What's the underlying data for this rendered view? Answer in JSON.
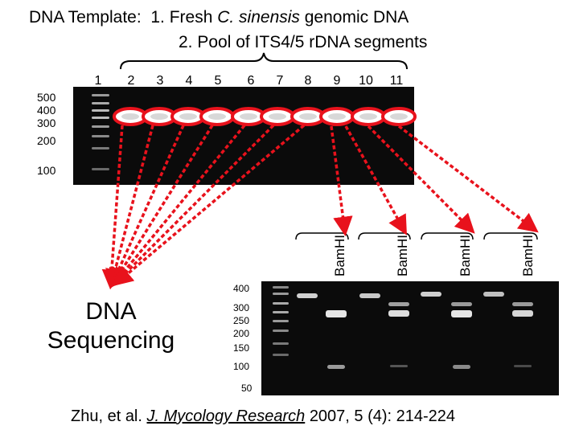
{
  "title": {
    "line1_prefix": "DNA Template:  1. Fresh ",
    "line1_italic": "C. sinensis",
    "line1_suffix": " genomic DNA",
    "line2": "2. Pool of ITS4/5 r",
    "line2_suffix": "DNA segments"
  },
  "top_gel": {
    "lane_labels": [
      "1",
      "2",
      "3",
      "4",
      "5",
      "6",
      "7",
      "8",
      "9",
      "10",
      "11"
    ],
    "ladder_labels": [
      "500",
      "400",
      "300",
      "200",
      "100"
    ]
  },
  "bottom_gel": {
    "ladder_labels": [
      "400",
      "300",
      "250",
      "200",
      "150",
      "100",
      "50"
    ],
    "enzyme_labels": [
      "BamHI",
      "BamHI",
      "BamHI",
      "BamHI"
    ]
  },
  "sequencing_label": [
    "DNA",
    "Sequencing"
  ],
  "citation": {
    "authors": "Zhu, et al.",
    "journal": "J. Mycology Research",
    "details": "2007, 5 (4): 214-224"
  },
  "colors": {
    "highlight": "#e8121c",
    "gel_background": "#0b0b0b",
    "band": "#e6e6e6"
  }
}
